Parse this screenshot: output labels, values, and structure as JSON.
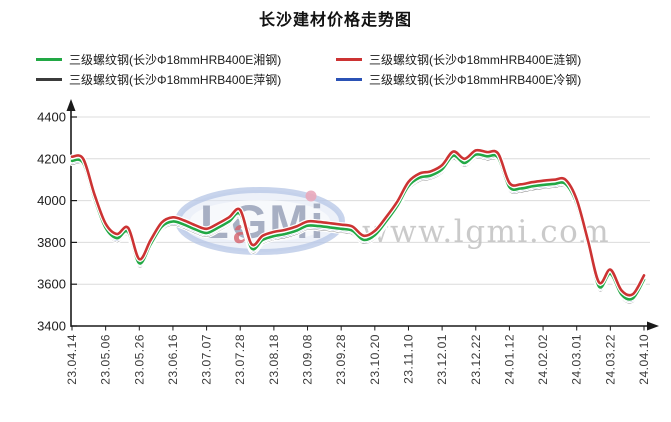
{
  "title": "长沙建材价格走势图",
  "watermark": {
    "brand": "LGMi",
    "brand_accent": "a",
    "url": "www.lgmi.com"
  },
  "legend": {
    "items": [
      {
        "key": "xianggang",
        "label": "三级螺纹钢(长沙Φ18mmHRB400E湘钢)",
        "color": "#22a845"
      },
      {
        "key": "liangang",
        "label": "三级螺纹钢(长沙Φ18mmHRB400E涟钢)",
        "color": "#cc3333"
      },
      {
        "key": "pinggang",
        "label": "三级螺纹钢(长沙Φ18mmHRB400E萍钢)",
        "color": "#3b3b3b"
      },
      {
        "key": "lenggang",
        "label": "三级螺纹钢(长沙Φ18mmHRB400E冷钢)",
        "color": "#2b52b5"
      }
    ]
  },
  "chart_data": {
    "type": "line",
    "title": "长沙建材价格走势图",
    "xlabel": "",
    "ylabel": "",
    "ylim": [
      3400,
      4400
    ],
    "y_ticks": [
      3400,
      3600,
      3800,
      4000,
      4200,
      4400
    ],
    "grid": "horizontal",
    "legend_position": "top",
    "x_tick_labels": [
      "23.04.14",
      "23.05.06",
      "23.05.26",
      "23.06.16",
      "23.07.07",
      "23.07.28",
      "23.08.18",
      "23.09.08",
      "23.09.28",
      "23.10.20",
      "23.11.10",
      "23.12.01",
      "23.12.22",
      "24.01.12",
      "24.02.02",
      "24.03.01",
      "24.03.22",
      "24.04.10"
    ],
    "points_per_tick": 3,
    "series": [
      {
        "key": "xianggang",
        "name": "三级螺纹钢(长沙Φ18mmHRB400E湘钢)",
        "color": "#22a845",
        "values": [
          4190,
          4180,
          4010,
          3870,
          3820,
          3850,
          3700,
          3790,
          3875,
          3900,
          3885,
          3862,
          3845,
          3870,
          3900,
          3935,
          3772,
          3812,
          3830,
          3840,
          3856,
          3880,
          3878,
          3872,
          3865,
          3856,
          3812,
          3835,
          3900,
          3975,
          4070,
          4110,
          4120,
          4150,
          4215,
          4180,
          4220,
          4212,
          4205,
          4065,
          4058,
          4068,
          4075,
          4080,
          4080,
          3985,
          3790,
          3588,
          3650,
          3550,
          3532,
          3622
        ]
      },
      {
        "key": "liangang",
        "name": "三级螺纹钢(长沙Φ18mmHRB400E涟钢)",
        "color": "#cc3333",
        "values": [
          4210,
          4200,
          4030,
          3890,
          3840,
          3870,
          3720,
          3810,
          3895,
          3920,
          3905,
          3882,
          3865,
          3890,
          3920,
          3955,
          3792,
          3832,
          3850,
          3860,
          3876,
          3900,
          3898,
          3892,
          3885,
          3876,
          3832,
          3855,
          3920,
          3995,
          4090,
          4130,
          4140,
          4170,
          4235,
          4200,
          4240,
          4232,
          4225,
          4085,
          4078,
          4088,
          4095,
          4100,
          4100,
          4005,
          3810,
          3608,
          3670,
          3570,
          3552,
          3642
        ]
      },
      {
        "key": "pinggang",
        "name": "三级螺纹钢(长沙Φ18mmHRB400E萍钢)",
        "color": "#3b3b3b",
        "values": [
          4177,
          4167,
          3997,
          3857,
          3807,
          3837,
          3687,
          3777,
          3862,
          3887,
          3872,
          3849,
          3832,
          3857,
          3887,
          3922,
          3759,
          3799,
          3817,
          3827,
          3843,
          3867,
          3865,
          3859,
          3852,
          3843,
          3799,
          3822,
          3887,
          3962,
          4057,
          4097,
          4107,
          4137,
          4202,
          4167,
          4207,
          4199,
          4192,
          4052,
          4045,
          4055,
          4062,
          4067,
          4067,
          3972,
          3777,
          3575,
          3637,
          3537,
          3519,
          3609
        ]
      },
      {
        "key": "lenggang",
        "name": "三级螺纹钢(长沙Φ18mmHRB400E冷钢)",
        "color": "#2b52b5",
        "values": [
          4184,
          4174,
          4004,
          3864,
          3814,
          3844,
          3694,
          3784,
          3869,
          3894,
          3879,
          3856,
          3839,
          3864,
          3894,
          3929,
          3766,
          3806,
          3824,
          3834,
          3850,
          3874,
          3872,
          3866,
          3859,
          3850,
          3806,
          3829,
          3894,
          3969,
          4064,
          4104,
          4114,
          4144,
          4209,
          4174,
          4214,
          4206,
          4199,
          4059,
          4052,
          4062,
          4069,
          4074,
          4074,
          3979,
          3784,
          3582,
          3644,
          3544,
          3526,
          3616
        ]
      }
    ]
  }
}
